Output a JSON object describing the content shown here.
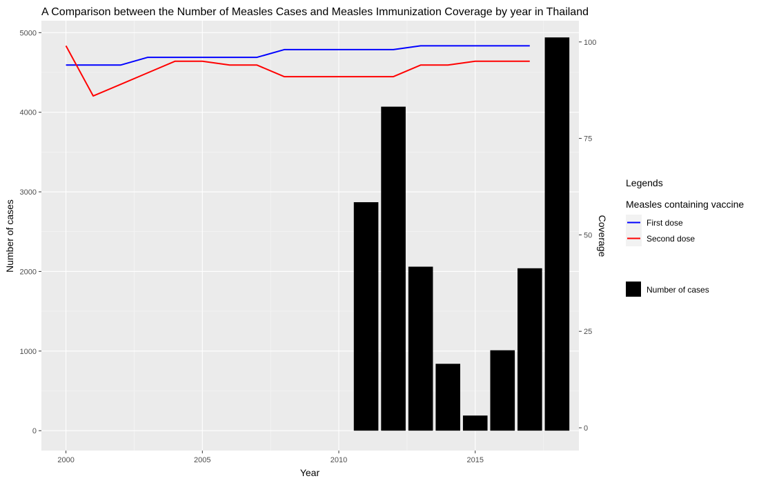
{
  "chart_data": {
    "type": "bar+line",
    "title": "A Comparison between the Number of Measles Cases and Measles Immunization Coverage by year in Thailand",
    "xlabel": "Year",
    "ylabel": "Number of cases",
    "y2label": "Coverage",
    "xlim": [
      1999.1,
      2018.8
    ],
    "ylim": [
      -250,
      5150
    ],
    "y2lim": [
      -5.9,
      105.5
    ],
    "x_ticks": [
      2000,
      2005,
      2010,
      2015
    ],
    "y_ticks": [
      0,
      1000,
      2000,
      3000,
      4000,
      5000
    ],
    "y2_ticks": [
      0,
      25,
      50,
      75,
      100
    ],
    "bars": {
      "name": "Number of cases",
      "color": "#000000",
      "x": [
        2011,
        2012,
        2013,
        2014,
        2015,
        2016,
        2017,
        2018
      ],
      "values": [
        2870,
        4070,
        2060,
        840,
        190,
        1010,
        2040,
        4940
      ]
    },
    "series": [
      {
        "name": "First dose",
        "color": "#0000ff",
        "x": [
          2000,
          2001,
          2002,
          2003,
          2004,
          2005,
          2006,
          2007,
          2008,
          2009,
          2010,
          2011,
          2012,
          2013,
          2014,
          2015,
          2016,
          2017
        ],
        "values": [
          94,
          94,
          94,
          96,
          96,
          96,
          96,
          96,
          98,
          98,
          98,
          98,
          98,
          99,
          99,
          99,
          99,
          99
        ]
      },
      {
        "name": "Second dose",
        "color": "#ff0000",
        "x": [
          2000,
          2001,
          2002,
          2003,
          2004,
          2005,
          2006,
          2007,
          2008,
          2009,
          2010,
          2011,
          2012,
          2013,
          2014,
          2015,
          2016,
          2017
        ],
        "values": [
          99,
          86,
          89,
          92,
          95,
          95,
          94,
          94,
          91,
          91,
          91,
          91,
          91,
          94,
          94,
          95,
          95,
          95
        ]
      }
    ],
    "legend": {
      "title": "Legends",
      "lines_title": "Measles containing vaccine",
      "placement": "right"
    },
    "grid": true
  }
}
